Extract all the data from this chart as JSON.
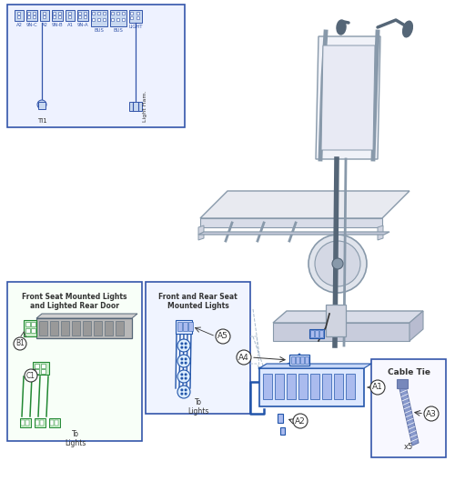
{
  "bg_color": "#ffffff",
  "blue": "#2255aa",
  "blue_light": "#dde8ff",
  "blue_mid": "#4466bb",
  "green": "#228833",
  "green_light": "#cceecc",
  "gray": "#8899aa",
  "gray_dark": "#556677",
  "gray_light": "#dde0e8",
  "gray_mid": "#aabbcc",
  "border_blue": "#3355aa",
  "black": "#333333",
  "connector_labels": [
    "A2",
    "9N-C",
    "A2",
    "9N-B",
    "A1",
    "9N-A",
    "BUS",
    "BUS",
    "LIGHT"
  ],
  "tl_label": "TI1",
  "light_harness_label": "Light Ham.",
  "box1_title1": "Front Seat Mounted Lights",
  "box1_title2": "and Lighted Rear Door",
  "box2_title1": "Front and Rear Seat",
  "box2_title2": "Mounted Lights",
  "cable_tie_label": "Cable Tie",
  "x5_label": "x5"
}
